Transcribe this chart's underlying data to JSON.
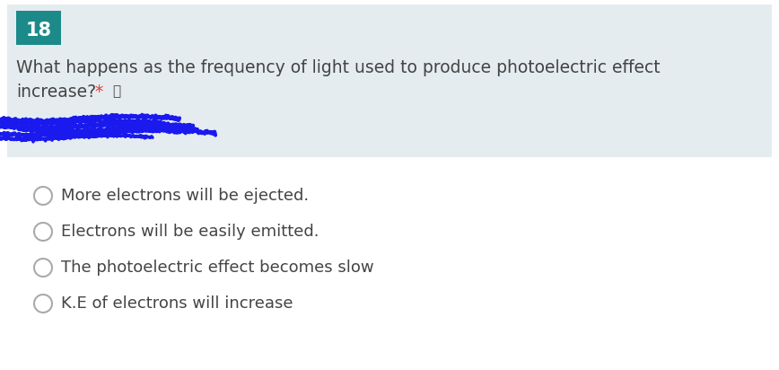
{
  "question_number": "18",
  "question_number_bg": "#1d8a8a",
  "question_number_color": "#ffffff",
  "question_text_line1": "What happens as the frequency of light used to produce photoelectric effect",
  "question_text_line2": "increase?",
  "asterisk": " *",
  "asterisk_color": "#e53935",
  "header_bg": "#e4ecf0",
  "page_bg": "#ffffff",
  "options": [
    "More electrons will be ejected.",
    "Electrons will be easily emitted.",
    "The photoelectric effect becomes slow",
    "K.E of electrons will increase"
  ],
  "option_text_color": "#444444",
  "circle_color": "#aaaaaa",
  "font_size_question": 13.5,
  "font_size_number": 15,
  "font_size_option": 13,
  "scribble_color": "#1a1aee"
}
